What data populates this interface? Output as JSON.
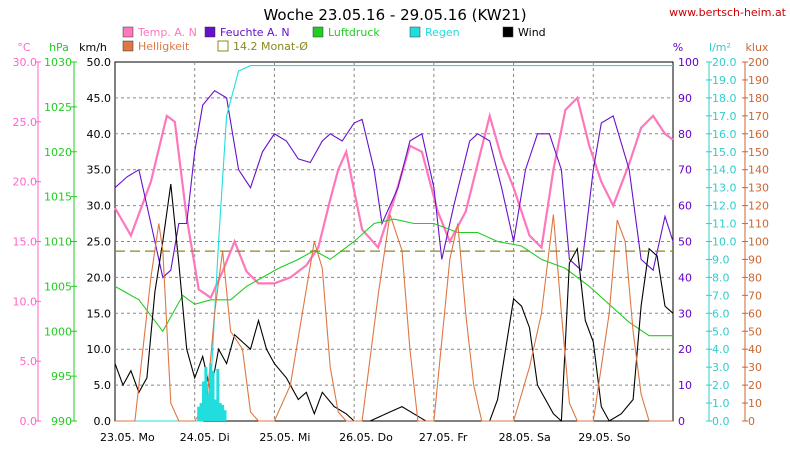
{
  "chart_data": {
    "type": "line",
    "title": "Woche 23.05.16 - 29.05.16 (KW21)",
    "source": "www.bertsch-heim.at",
    "x_labels": [
      "23.05.  Mo",
      "24.05.  Di",
      "25.05.  Mi",
      "26.05.  Do",
      "27.05.  Fr",
      "28.05.  Sa",
      "29.05.  So"
    ],
    "x_range_days": [
      0,
      7
    ],
    "grid": true,
    "axes": {
      "celsius": {
        "label": "°C",
        "color": "#ff66cc",
        "ticks": [
          "30.0",
          "25.0",
          "20.0",
          "15.0",
          "10.0",
          "5.0",
          "0.0"
        ]
      },
      "hpa": {
        "label": "hPa",
        "color": "#22cc22",
        "ticks": [
          "1030",
          "1025",
          "1020",
          "1015",
          "1010",
          "1005",
          "1000",
          "995",
          "990"
        ]
      },
      "kmh": {
        "label": "km/h",
        "color": "#000000",
        "ticks": [
          "50.0",
          "45.0",
          "40.0",
          "35.0",
          "30.0",
          "25.0",
          "20.0",
          "15.0",
          "10.0",
          "5.0",
          "0.0"
        ]
      },
      "percent": {
        "label": "%",
        "color": "#6600cc",
        "ticks": [
          "100",
          "90",
          "80",
          "70",
          "60",
          "50",
          "40",
          "30",
          "20",
          "10",
          "0"
        ]
      },
      "lm2": {
        "label": "l/m²",
        "color": "#33cccc",
        "ticks": [
          "20.0",
          "19.0",
          "18.0",
          "17.0",
          "16.0",
          "15.0",
          "14.0",
          "13.0",
          "12.0",
          "11.0",
          "10.0",
          "9.0",
          "8.0",
          "7.0",
          "6.0",
          "5.0",
          "4.0",
          "3.0",
          "2.0",
          "1.0",
          "0.0"
        ]
      },
      "klux": {
        "label": "klux",
        "color": "#cc6633",
        "ticks": [
          "200",
          "190",
          "180",
          "170",
          "160",
          "150",
          "140",
          "130",
          "120",
          "110",
          "100",
          "90",
          "80",
          "70",
          "60",
          "50",
          "40",
          "30",
          "20",
          "10",
          "0"
        ]
      }
    },
    "legend": [
      {
        "label": "Temp. A. N",
        "color": "#ff77bb",
        "kind": "swatch"
      },
      {
        "label": "Feuchte A. N",
        "color": "#6611cc",
        "kind": "swatch"
      },
      {
        "label": "Luftdruck",
        "color": "#22cc22",
        "kind": "swatch"
      },
      {
        "label": "Regen",
        "color": "#22dddd",
        "kind": "swatch"
      },
      {
        "label": "Wind",
        "color": "#000000",
        "kind": "swatch"
      },
      {
        "label": "Helligkeit",
        "color": "#dd7744",
        "kind": "swatch"
      },
      {
        "label": "14.2 Monat-Ø",
        "color": "#888822",
        "kind": "outline"
      }
    ],
    "series": [
      {
        "name": "Temp. A. N",
        "unit": "°C",
        "axis": "celsius",
        "color": "#ff77bb",
        "points": [
          [
            0,
            17.8
          ],
          [
            0.2,
            15.5
          ],
          [
            0.45,
            20
          ],
          [
            0.65,
            25.5
          ],
          [
            0.75,
            25
          ],
          [
            0.9,
            17
          ],
          [
            1.05,
            11
          ],
          [
            1.2,
            10.3
          ],
          [
            1.35,
            12.5
          ],
          [
            1.5,
            15
          ],
          [
            1.65,
            12.5
          ],
          [
            1.8,
            11.5
          ],
          [
            2.0,
            11.5
          ],
          [
            2.2,
            12
          ],
          [
            2.4,
            13
          ],
          [
            2.55,
            14.5
          ],
          [
            2.7,
            18.5
          ],
          [
            2.8,
            21
          ],
          [
            2.9,
            22.5
          ],
          [
            3.1,
            16
          ],
          [
            3.3,
            14.5
          ],
          [
            3.5,
            18.5
          ],
          [
            3.7,
            23
          ],
          [
            3.85,
            22.5
          ],
          [
            4.05,
            17.5
          ],
          [
            4.2,
            15
          ],
          [
            4.4,
            17.5
          ],
          [
            4.55,
            21.5
          ],
          [
            4.7,
            25.5
          ],
          [
            4.85,
            22
          ],
          [
            5.0,
            19.5
          ],
          [
            5.2,
            15.5
          ],
          [
            5.35,
            14.5
          ],
          [
            5.5,
            21
          ],
          [
            5.65,
            26
          ],
          [
            5.8,
            27
          ],
          [
            5.95,
            23
          ],
          [
            6.1,
            20
          ],
          [
            6.25,
            18
          ],
          [
            6.45,
            21.5
          ],
          [
            6.6,
            24.5
          ],
          [
            6.75,
            25.5
          ],
          [
            6.9,
            24
          ],
          [
            7.0,
            23.5
          ]
        ]
      },
      {
        "name": "Feuchte A. N",
        "unit": "%",
        "axis": "percent",
        "color": "#6611cc",
        "points": [
          [
            0,
            65
          ],
          [
            0.15,
            68
          ],
          [
            0.3,
            70
          ],
          [
            0.45,
            55
          ],
          [
            0.6,
            40
          ],
          [
            0.7,
            42
          ],
          [
            0.8,
            55
          ],
          [
            0.9,
            55
          ],
          [
            1.0,
            75
          ],
          [
            1.1,
            88
          ],
          [
            1.25,
            92
          ],
          [
            1.4,
            90
          ],
          [
            1.55,
            70
          ],
          [
            1.7,
            65
          ],
          [
            1.85,
            75
          ],
          [
            2.0,
            80
          ],
          [
            2.15,
            78
          ],
          [
            2.3,
            73
          ],
          [
            2.45,
            72
          ],
          [
            2.6,
            78
          ],
          [
            2.7,
            80
          ],
          [
            2.85,
            78
          ],
          [
            3.0,
            83
          ],
          [
            3.1,
            84
          ],
          [
            3.25,
            70
          ],
          [
            3.35,
            55
          ],
          [
            3.55,
            65
          ],
          [
            3.7,
            78
          ],
          [
            3.85,
            80
          ],
          [
            4.0,
            65
          ],
          [
            4.1,
            45
          ],
          [
            4.25,
            60
          ],
          [
            4.45,
            78
          ],
          [
            4.55,
            80
          ],
          [
            4.7,
            78
          ],
          [
            4.85,
            65
          ],
          [
            5.0,
            50
          ],
          [
            5.15,
            70
          ],
          [
            5.3,
            80
          ],
          [
            5.45,
            80
          ],
          [
            5.6,
            70
          ],
          [
            5.7,
            45
          ],
          [
            5.85,
            42
          ],
          [
            6.0,
            70
          ],
          [
            6.1,
            83
          ],
          [
            6.25,
            85
          ],
          [
            6.45,
            70
          ],
          [
            6.6,
            45
          ],
          [
            6.75,
            42
          ],
          [
            6.9,
            57
          ],
          [
            7.0,
            50
          ]
        ]
      },
      {
        "name": "Luftdruck",
        "unit": "hPa",
        "axis": "hpa",
        "color": "#22cc22",
        "points": [
          [
            0,
            1005
          ],
          [
            0.3,
            1003.5
          ],
          [
            0.6,
            1000
          ],
          [
            0.85,
            1004
          ],
          [
            1.0,
            1003
          ],
          [
            1.2,
            1003.5
          ],
          [
            1.45,
            1003.5
          ],
          [
            1.65,
            1005
          ],
          [
            1.85,
            1006
          ],
          [
            2.05,
            1007
          ],
          [
            2.3,
            1008
          ],
          [
            2.5,
            1009
          ],
          [
            2.7,
            1008
          ],
          [
            3.0,
            1010
          ],
          [
            3.25,
            1012
          ],
          [
            3.5,
            1012.5
          ],
          [
            3.75,
            1012
          ],
          [
            4.0,
            1012
          ],
          [
            4.3,
            1011
          ],
          [
            4.55,
            1011
          ],
          [
            4.8,
            1010
          ],
          [
            5.1,
            1009.5
          ],
          [
            5.35,
            1008
          ],
          [
            5.65,
            1007
          ],
          [
            5.95,
            1005
          ],
          [
            6.2,
            1003
          ],
          [
            6.45,
            1001
          ],
          [
            6.7,
            999.5
          ],
          [
            6.9,
            999.5
          ],
          [
            7.0,
            999.5
          ]
        ]
      },
      {
        "name": "Regen",
        "unit": "l/m²",
        "axis": "lm2",
        "color": "#22dddd",
        "points": [
          [
            0,
            0
          ],
          [
            1.1,
            0
          ],
          [
            1.2,
            2
          ],
          [
            1.3,
            10
          ],
          [
            1.4,
            17
          ],
          [
            1.55,
            19.5
          ],
          [
            1.7,
            19.8
          ],
          [
            3.0,
            19.8
          ],
          [
            5.0,
            19.8
          ],
          [
            7.0,
            19.8
          ]
        ]
      },
      {
        "name": "Wind",
        "unit": "km/h",
        "axis": "kmh",
        "color": "#000000",
        "points": [
          [
            0,
            8
          ],
          [
            0.1,
            5
          ],
          [
            0.2,
            7
          ],
          [
            0.3,
            4
          ],
          [
            0.4,
            6
          ],
          [
            0.5,
            18
          ],
          [
            0.6,
            25
          ],
          [
            0.7,
            33
          ],
          [
            0.8,
            22
          ],
          [
            0.9,
            10
          ],
          [
            1.0,
            6
          ],
          [
            1.1,
            9
          ],
          [
            1.2,
            4
          ],
          [
            1.3,
            10
          ],
          [
            1.4,
            8
          ],
          [
            1.5,
            12
          ],
          [
            1.6,
            11
          ],
          [
            1.7,
            10
          ],
          [
            1.8,
            14
          ],
          [
            1.9,
            10
          ],
          [
            2.0,
            8
          ],
          [
            2.15,
            6
          ],
          [
            2.3,
            3
          ],
          [
            2.4,
            4
          ],
          [
            2.5,
            1
          ],
          [
            2.6,
            4
          ],
          [
            2.75,
            2
          ],
          [
            2.9,
            1
          ],
          [
            3.0,
            0
          ],
          [
            3.2,
            0
          ],
          [
            3.4,
            1
          ],
          [
            3.6,
            2
          ],
          [
            3.75,
            1
          ],
          [
            3.9,
            0
          ],
          [
            4.2,
            0
          ],
          [
            4.5,
            0
          ],
          [
            4.7,
            0
          ],
          [
            4.8,
            3
          ],
          [
            4.9,
            10
          ],
          [
            5.0,
            17
          ],
          [
            5.1,
            16
          ],
          [
            5.2,
            13
          ],
          [
            5.3,
            5
          ],
          [
            5.5,
            1
          ],
          [
            5.6,
            0
          ],
          [
            5.7,
            22
          ],
          [
            5.8,
            24
          ],
          [
            5.9,
            14
          ],
          [
            6.0,
            11
          ],
          [
            6.1,
            2
          ],
          [
            6.2,
            0
          ],
          [
            6.35,
            1
          ],
          [
            6.5,
            3
          ],
          [
            6.6,
            16
          ],
          [
            6.7,
            24
          ],
          [
            6.8,
            23
          ],
          [
            6.9,
            16
          ],
          [
            7.0,
            15
          ]
        ]
      },
      {
        "name": "Helligkeit",
        "unit": "klux",
        "axis": "klux",
        "color": "#dd7744",
        "points": [
          [
            0,
            0
          ],
          [
            0.25,
            0
          ],
          [
            0.35,
            40
          ],
          [
            0.45,
            80
          ],
          [
            0.55,
            110
          ],
          [
            0.6,
            95
          ],
          [
            0.7,
            10
          ],
          [
            0.8,
            0
          ],
          [
            1.0,
            0
          ],
          [
            1.15,
            10
          ],
          [
            1.25,
            60
          ],
          [
            1.35,
            95
          ],
          [
            1.45,
            50
          ],
          [
            1.6,
            40
          ],
          [
            1.7,
            5
          ],
          [
            1.8,
            0
          ],
          [
            2.0,
            0
          ],
          [
            2.2,
            20
          ],
          [
            2.35,
            60
          ],
          [
            2.5,
            100
          ],
          [
            2.6,
            85
          ],
          [
            2.7,
            30
          ],
          [
            2.8,
            5
          ],
          [
            2.9,
            0
          ],
          [
            3.1,
            0
          ],
          [
            3.3,
            70
          ],
          [
            3.45,
            115
          ],
          [
            3.6,
            95
          ],
          [
            3.7,
            40
          ],
          [
            3.8,
            0
          ],
          [
            4.0,
            0
          ],
          [
            4.2,
            90
          ],
          [
            4.3,
            110
          ],
          [
            4.4,
            60
          ],
          [
            4.5,
            20
          ],
          [
            4.6,
            0
          ],
          [
            5.0,
            0
          ],
          [
            5.2,
            30
          ],
          [
            5.35,
            60
          ],
          [
            5.5,
            115
          ],
          [
            5.6,
            60
          ],
          [
            5.7,
            10
          ],
          [
            5.8,
            0
          ],
          [
            6.0,
            0
          ],
          [
            6.2,
            60
          ],
          [
            6.3,
            112
          ],
          [
            6.4,
            100
          ],
          [
            6.5,
            50
          ],
          [
            6.6,
            15
          ],
          [
            6.7,
            0
          ],
          [
            7.0,
            0
          ]
        ]
      },
      {
        "name": "14.2 Monat-Ø",
        "unit": "°C",
        "axis": "celsius",
        "color": "#888822",
        "dashed": true,
        "points": [
          [
            0,
            14.2
          ],
          [
            7,
            14.2
          ]
        ]
      }
    ]
  }
}
